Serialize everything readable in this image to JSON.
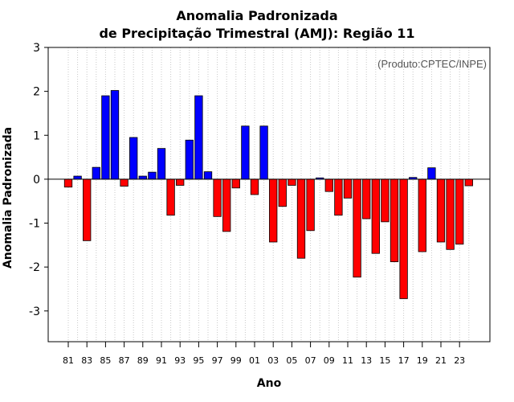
{
  "chart_data": {
    "type": "bar",
    "title": "Anomalia Padronizada",
    "subtitle": "de Precipitação Trimestral (AMJ): Região 11",
    "xlabel": "Ano",
    "ylabel": "Anomalia Padronizada",
    "credit": "(Produto:CPTEC/INPE)",
    "ylim": [
      -3.7,
      3.0
    ],
    "yticks": [
      -3,
      -2,
      -1,
      0,
      1,
      2,
      3
    ],
    "x_tick_labels": [
      "81",
      "83",
      "85",
      "87",
      "89",
      "91",
      "93",
      "95",
      "97",
      "99",
      "01",
      "03",
      "05",
      "07",
      "09",
      "11",
      "13",
      "15",
      "17",
      "19",
      "21",
      "23"
    ],
    "positive_color": "#0000ff",
    "negative_color": "#ff0000",
    "grid": "vertical dotted",
    "categories": [
      "1981",
      "1982",
      "1983",
      "1984",
      "1985",
      "1986",
      "1987",
      "1988",
      "1989",
      "1990",
      "1991",
      "1992",
      "1993",
      "1994",
      "1995",
      "1996",
      "1997",
      "1998",
      "1999",
      "2000",
      "2001",
      "2002",
      "2003",
      "2004",
      "2005",
      "2006",
      "2007",
      "2008",
      "2009",
      "2010",
      "2011",
      "2012",
      "2013",
      "2014",
      "2015",
      "2016",
      "2017",
      "2018",
      "2019",
      "2020",
      "2021",
      "2022",
      "2023",
      "2024"
    ],
    "values": [
      -0.18,
      0.07,
      -1.4,
      0.27,
      1.9,
      2.02,
      -0.16,
      0.95,
      0.07,
      0.16,
      0.7,
      -0.82,
      -0.14,
      0.89,
      1.9,
      0.17,
      -0.85,
      -1.19,
      -0.2,
      1.21,
      -0.35,
      1.21,
      -1.43,
      -0.62,
      -0.14,
      -1.8,
      -1.17,
      0.03,
      -0.28,
      -0.82,
      -0.43,
      -2.23,
      -0.9,
      -1.69,
      -0.97,
      -1.88,
      -2.72,
      0.04,
      -1.65,
      0.26,
      -1.43,
      -1.6,
      -1.48,
      -0.15
    ]
  }
}
